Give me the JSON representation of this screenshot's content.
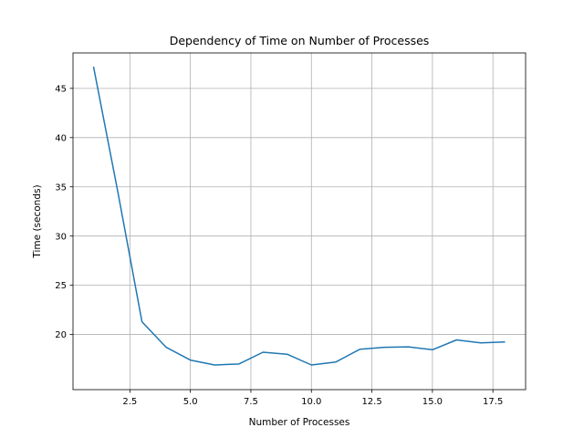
{
  "chart_data": {
    "type": "line",
    "title": "Dependency of Time on Number of Processes",
    "xlabel": "Number of Processes",
    "ylabel": "Time (seconds)",
    "xlim": [
      0.15,
      18.85
    ],
    "ylim": [
      14.4,
      48.6
    ],
    "xticks": [
      2.5,
      5.0,
      7.5,
      10.0,
      12.5,
      15.0,
      17.5
    ],
    "xtick_labels": [
      "2.5",
      "5.0",
      "7.5",
      "10.0",
      "12.5",
      "15.0",
      "17.5"
    ],
    "yticks": [
      20,
      25,
      30,
      35,
      40,
      45
    ],
    "ytick_labels": [
      "20",
      "25",
      "30",
      "35",
      "40",
      "45"
    ],
    "grid": true,
    "series": [
      {
        "color": "#1f77b4",
        "x": [
          1,
          2,
          3,
          4,
          5,
          6,
          7,
          8,
          9,
          10,
          11,
          12,
          13,
          14,
          15,
          16,
          17,
          18
        ],
        "y": [
          47.2,
          34.5,
          21.3,
          18.7,
          17.4,
          16.9,
          17.0,
          18.2,
          18.0,
          16.9,
          17.2,
          18.5,
          18.7,
          18.75,
          18.45,
          19.45,
          19.15,
          19.25
        ]
      }
    ]
  }
}
